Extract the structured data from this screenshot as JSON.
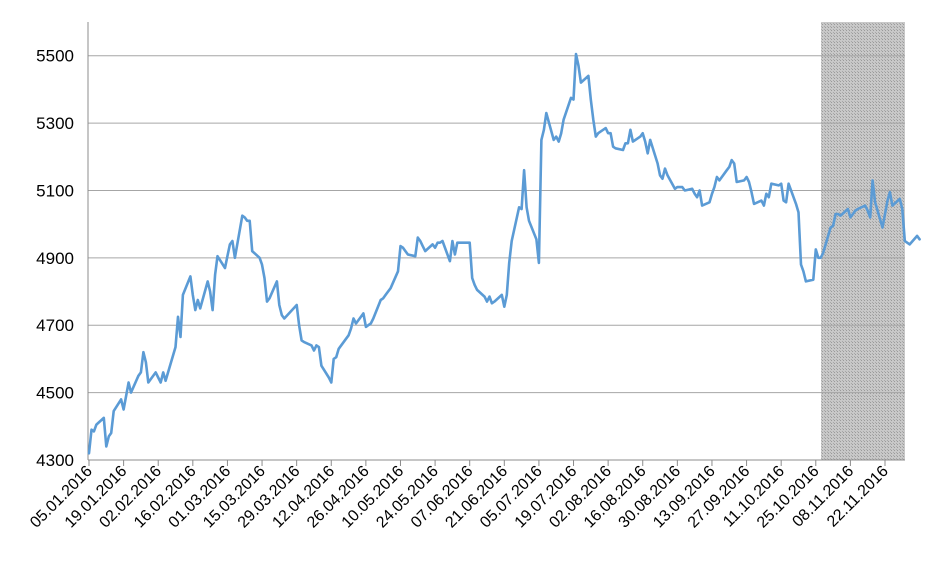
{
  "chart_data": {
    "type": "line",
    "title": "",
    "xlabel": "",
    "ylabel": "",
    "ylim": [
      4300,
      5600
    ],
    "yticks": [
      4300,
      4500,
      4700,
      4900,
      5100,
      5300,
      5500
    ],
    "xtick_labels": [
      "05.01.2016",
      "19.01.2016",
      "02.02.2016",
      "16.02.2016",
      "01.03.2016",
      "15.03.2016",
      "29.03.2016",
      "12.04.2016",
      "26.04.2016",
      "10.05.2016",
      "24.05.2016",
      "07.06.2016",
      "21.06.2016",
      "05.07.2016",
      "19.07.2016",
      "02.08.2016",
      "16.08.2016",
      "30.08.2016",
      "13.09.2016",
      "27.09.2016",
      "11.10.2016",
      "25.10.2016",
      "08.11.2016",
      "22.11.2016"
    ],
    "grid": true,
    "legend": "none",
    "line_color": "#5B9BD5",
    "shaded_region": {
      "from": "01.11.2016",
      "to": "30.11.2016",
      "color": "#BFBFBF"
    },
    "series": [
      {
        "values": [
          [
            "05.01.2016",
            4320
          ],
          [
            "06.01.2016",
            4390
          ],
          [
            "07.01.2016",
            4385
          ],
          [
            "08.01.2016",
            4405
          ],
          [
            "11.01.2016",
            4425
          ],
          [
            "12.01.2016",
            4340
          ],
          [
            "13.01.2016",
            4370
          ],
          [
            "14.01.2016",
            4380
          ],
          [
            "15.01.2016",
            4445
          ],
          [
            "18.01.2016",
            4480
          ],
          [
            "19.01.2016",
            4450
          ],
          [
            "20.01.2016",
            4490
          ],
          [
            "21.01.2016",
            4530
          ],
          [
            "22.01.2016",
            4500
          ],
          [
            "25.01.2016",
            4550
          ],
          [
            "26.01.2016",
            4560
          ],
          [
            "27.01.2016",
            4620
          ],
          [
            "28.01.2016",
            4590
          ],
          [
            "29.01.2016",
            4530
          ],
          [
            "01.02.2016",
            4560
          ],
          [
            "02.02.2016",
            4545
          ],
          [
            "03.02.2016",
            4530
          ],
          [
            "04.02.2016",
            4560
          ],
          [
            "05.02.2016",
            4535
          ],
          [
            "08.02.2016",
            4610
          ],
          [
            "09.02.2016",
            4635
          ],
          [
            "10.02.2016",
            4725
          ],
          [
            "11.02.2016",
            4665
          ],
          [
            "12.02.2016",
            4790
          ],
          [
            "15.02.2016",
            4845
          ],
          [
            "16.02.2016",
            4790
          ],
          [
            "17.02.2016",
            4745
          ],
          [
            "18.02.2016",
            4775
          ],
          [
            "19.02.2016",
            4750
          ],
          [
            "22.02.2016",
            4830
          ],
          [
            "23.02.2016",
            4800
          ],
          [
            "24.02.2016",
            4745
          ],
          [
            "25.02.2016",
            4850
          ],
          [
            "26.02.2016",
            4905
          ],
          [
            "29.02.2016",
            4870
          ],
          [
            "01.03.2016",
            4905
          ],
          [
            "02.03.2016",
            4940
          ],
          [
            "03.03.2016",
            4950
          ],
          [
            "04.03.2016",
            4900
          ],
          [
            "07.03.2016",
            5025
          ],
          [
            "08.03.2016",
            5020
          ],
          [
            "09.03.2016",
            5010
          ],
          [
            "10.03.2016",
            5010
          ],
          [
            "11.03.2016",
            4920
          ],
          [
            "14.03.2016",
            4900
          ],
          [
            "15.03.2016",
            4880
          ],
          [
            "16.03.2016",
            4840
          ],
          [
            "17.03.2016",
            4770
          ],
          [
            "18.03.2016",
            4780
          ],
          [
            "21.03.2016",
            4830
          ],
          [
            "22.03.2016",
            4760
          ],
          [
            "23.03.2016",
            4730
          ],
          [
            "24.03.2016",
            4720
          ],
          [
            "29.03.2016",
            4760
          ],
          [
            "30.03.2016",
            4700
          ],
          [
            "31.03.2016",
            4655
          ],
          [
            "01.04.2016",
            4650
          ],
          [
            "04.04.2016",
            4640
          ],
          [
            "05.04.2016",
            4625
          ],
          [
            "06.04.2016",
            4640
          ],
          [
            "07.04.2016",
            4635
          ],
          [
            "08.04.2016",
            4580
          ],
          [
            "11.04.2016",
            4545
          ],
          [
            "12.04.2016",
            4530
          ],
          [
            "13.04.2016",
            4600
          ],
          [
            "14.04.2016",
            4605
          ],
          [
            "15.04.2016",
            4630
          ],
          [
            "18.04.2016",
            4660
          ],
          [
            "19.04.2016",
            4670
          ],
          [
            "20.04.2016",
            4690
          ],
          [
            "21.04.2016",
            4720
          ],
          [
            "22.04.2016",
            4705
          ],
          [
            "25.04.2016",
            4735
          ],
          [
            "26.04.2016",
            4695
          ],
          [
            "27.04.2016",
            4700
          ],
          [
            "28.04.2016",
            4705
          ],
          [
            "29.04.2016",
            4720
          ],
          [
            "02.05.2016",
            4775
          ],
          [
            "03.05.2016",
            4780
          ],
          [
            "04.05.2016",
            4790
          ],
          [
            "05.05.2016",
            4800
          ],
          [
            "06.05.2016",
            4810
          ],
          [
            "09.05.2016",
            4860
          ],
          [
            "10.05.2016",
            4935
          ],
          [
            "11.05.2016",
            4930
          ],
          [
            "12.05.2016",
            4920
          ],
          [
            "13.05.2016",
            4910
          ],
          [
            "16.05.2016",
            4905
          ],
          [
            "17.05.2016",
            4960
          ],
          [
            "18.05.2016",
            4950
          ],
          [
            "19.05.2016",
            4935
          ],
          [
            "20.05.2016",
            4920
          ],
          [
            "23.05.2016",
            4940
          ],
          [
            "24.05.2016",
            4930
          ],
          [
            "25.05.2016",
            4945
          ],
          [
            "26.05.2016",
            4945
          ],
          [
            "27.05.2016",
            4950
          ],
          [
            "30.05.2016",
            4890
          ],
          [
            "31.05.2016",
            4950
          ],
          [
            "01.06.2016",
            4910
          ],
          [
            "02.06.2016",
            4945
          ],
          [
            "03.06.2016",
            4945
          ],
          [
            "06.06.2016",
            4945
          ],
          [
            "07.06.2016",
            4945
          ],
          [
            "08.06.2016",
            4840
          ],
          [
            "09.06.2016",
            4820
          ],
          [
            "10.06.2016",
            4805
          ],
          [
            "13.06.2016",
            4785
          ],
          [
            "14.06.2016",
            4770
          ],
          [
            "15.06.2016",
            4785
          ],
          [
            "16.06.2016",
            4765
          ],
          [
            "17.06.2016",
            4770
          ],
          [
            "20.06.2016",
            4790
          ],
          [
            "21.06.2016",
            4755
          ],
          [
            "22.06.2016",
            4790
          ],
          [
            "23.06.2016",
            4885
          ],
          [
            "24.06.2016",
            4950
          ],
          [
            "27.06.2016",
            5050
          ],
          [
            "28.06.2016",
            5045
          ],
          [
            "29.06.2016",
            5160
          ],
          [
            "30.06.2016",
            5050
          ],
          [
            "01.07.2016",
            5010
          ],
          [
            "04.07.2016",
            4955
          ],
          [
            "05.07.2016",
            4885
          ],
          [
            "06.07.2016",
            5250
          ],
          [
            "07.07.2016",
            5280
          ],
          [
            "08.07.2016",
            5330
          ],
          [
            "11.07.2016",
            5250
          ],
          [
            "12.07.2016",
            5260
          ],
          [
            "13.07.2016",
            5245
          ],
          [
            "14.07.2016",
            5270
          ],
          [
            "15.07.2016",
            5310
          ],
          [
            "18.07.2016",
            5375
          ],
          [
            "19.07.2016",
            5370
          ],
          [
            "20.07.2016",
            5505
          ],
          [
            "21.07.2016",
            5470
          ],
          [
            "22.07.2016",
            5420
          ],
          [
            "25.07.2016",
            5440
          ],
          [
            "26.07.2016",
            5370
          ],
          [
            "27.07.2016",
            5310
          ],
          [
            "28.07.2016",
            5260
          ],
          [
            "29.07.2016",
            5270
          ],
          [
            "01.08.2016",
            5285
          ],
          [
            "02.08.2016",
            5270
          ],
          [
            "03.08.2016",
            5270
          ],
          [
            "04.08.2016",
            5230
          ],
          [
            "05.08.2016",
            5225
          ],
          [
            "08.08.2016",
            5220
          ],
          [
            "09.08.2016",
            5240
          ],
          [
            "10.08.2016",
            5240
          ],
          [
            "11.08.2016",
            5280
          ],
          [
            "12.08.2016",
            5245
          ],
          [
            "15.08.2016",
            5260
          ],
          [
            "16.08.2016",
            5270
          ],
          [
            "17.08.2016",
            5245
          ],
          [
            "18.08.2016",
            5210
          ],
          [
            "19.08.2016",
            5250
          ],
          [
            "22.08.2016",
            5180
          ],
          [
            "23.08.2016",
            5145
          ],
          [
            "24.08.2016",
            5135
          ],
          [
            "25.08.2016",
            5165
          ],
          [
            "26.08.2016",
            5145
          ],
          [
            "29.08.2016",
            5105
          ],
          [
            "30.08.2016",
            5110
          ],
          [
            "31.08.2016",
            5110
          ],
          [
            "01.09.2016",
            5110
          ],
          [
            "02.09.2016",
            5100
          ],
          [
            "05.09.2016",
            5105
          ],
          [
            "06.09.2016",
            5090
          ],
          [
            "07.09.2016",
            5080
          ],
          [
            "08.09.2016",
            5100
          ],
          [
            "09.09.2016",
            5055
          ],
          [
            "12.09.2016",
            5065
          ],
          [
            "13.09.2016",
            5090
          ],
          [
            "14.09.2016",
            5110
          ],
          [
            "15.09.2016",
            5140
          ],
          [
            "16.09.2016",
            5130
          ],
          [
            "19.09.2016",
            5160
          ],
          [
            "20.09.2016",
            5170
          ],
          [
            "21.09.2016",
            5190
          ],
          [
            "22.09.2016",
            5180
          ],
          [
            "23.09.2016",
            5125
          ],
          [
            "26.09.2016",
            5130
          ],
          [
            "27.09.2016",
            5140
          ],
          [
            "28.09.2016",
            5125
          ],
          [
            "29.09.2016",
            5095
          ],
          [
            "30.09.2016",
            5060
          ],
          [
            "03.10.2016",
            5070
          ],
          [
            "04.10.2016",
            5055
          ],
          [
            "05.10.2016",
            5090
          ],
          [
            "06.10.2016",
            5080
          ],
          [
            "07.10.2016",
            5120
          ],
          [
            "10.10.2016",
            5115
          ],
          [
            "11.10.2016",
            5120
          ],
          [
            "12.10.2016",
            5070
          ],
          [
            "13.10.2016",
            5065
          ],
          [
            "14.10.2016",
            5120
          ],
          [
            "17.10.2016",
            5060
          ],
          [
            "18.10.2016",
            5035
          ],
          [
            "19.10.2016",
            4880
          ],
          [
            "20.10.2016",
            4860
          ],
          [
            "21.10.2016",
            4830
          ],
          [
            "24.10.2016",
            4835
          ],
          [
            "25.10.2016",
            4925
          ],
          [
            "26.10.2016",
            4900
          ],
          [
            "27.10.2016",
            4900
          ],
          [
            "28.10.2016",
            4915
          ],
          [
            "31.10.2016",
            4990
          ],
          [
            "01.11.2016",
            4995
          ],
          [
            "02.11.2016",
            5030
          ],
          [
            "03.11.2016",
            5030
          ],
          [
            "04.11.2016",
            5025
          ],
          [
            "07.11.2016",
            5045
          ],
          [
            "08.11.2016",
            5020
          ],
          [
            "09.11.2016",
            5030
          ],
          [
            "10.11.2016",
            5040
          ],
          [
            "11.11.2016",
            5045
          ],
          [
            "14.11.2016",
            5055
          ],
          [
            "15.11.2016",
            5040
          ],
          [
            "16.11.2016",
            5020
          ],
          [
            "17.11.2016",
            5130
          ],
          [
            "18.11.2016",
            5065
          ],
          [
            "21.11.2016",
            4990
          ],
          [
            "22.11.2016",
            5030
          ],
          [
            "23.11.2016",
            5070
          ],
          [
            "24.11.2016",
            5095
          ],
          [
            "25.11.2016",
            5055
          ],
          [
            "28.11.2016",
            5075
          ],
          [
            "29.11.2016",
            5045
          ],
          [
            "30.11.2016",
            4950
          ],
          [
            "01.12.2016",
            4945
          ],
          [
            "02.12.2016",
            4940
          ],
          [
            "05.12.2016",
            4965
          ],
          [
            "06.12.2016",
            4955
          ]
        ]
      }
    ]
  }
}
